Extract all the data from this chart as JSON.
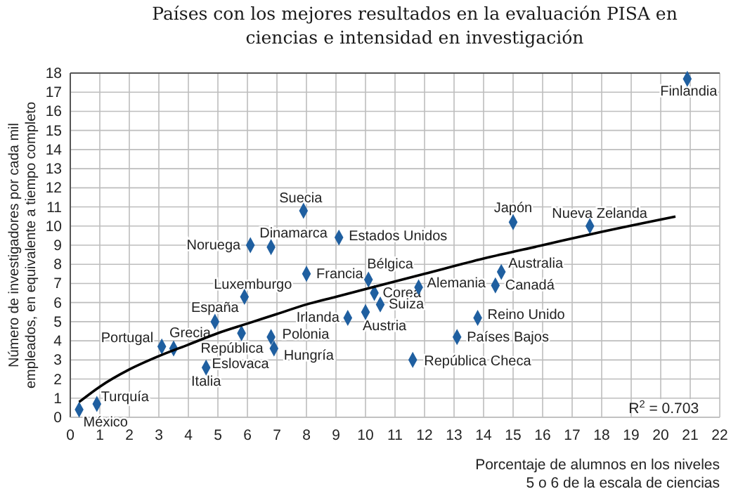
{
  "chart_data": {
    "type": "scatter",
    "title": "Países con los mejores resultados en la evaluación PISA en ciencias e intensidad en investigación",
    "xlabel": "Porcentaje de alumnos en los niveles 5 o 6 de la escala de ciencias",
    "ylabel": "Número de investigadores por cada mil empleados, en equivalente a tiempo completo",
    "xlim": [
      0,
      22
    ],
    "xticks": [
      0,
      1,
      2,
      3,
      4,
      5,
      6,
      7,
      8,
      9,
      10,
      11,
      12,
      13,
      14,
      15,
      16,
      17,
      18,
      19,
      20,
      21,
      22
    ],
    "ylim": [
      0,
      18
    ],
    "yticks": [
      0,
      1,
      2,
      3,
      4,
      5,
      6,
      7,
      8,
      9,
      10,
      11,
      12,
      13,
      14,
      15,
      16,
      17,
      18
    ],
    "grid": true,
    "marker": "diamond",
    "series": [
      {
        "color": "#1f5fa0",
        "x": [
          0.3,
          0.9,
          3.1,
          3.5,
          4.6,
          4.9,
          5.8,
          5.9,
          6.1,
          6.8,
          6.8,
          6.9,
          7.9,
          8.0,
          9.1,
          9.4,
          10.0,
          10.1,
          10.3,
          10.5,
          11.8,
          11.6,
          13.1,
          13.8,
          14.4,
          14.6,
          15.0,
          17.6,
          20.9
        ],
        "values": [
          0.4,
          0.7,
          3.7,
          3.6,
          2.6,
          5.0,
          4.4,
          6.3,
          9.0,
          8.9,
          4.2,
          3.6,
          10.8,
          7.5,
          9.4,
          5.2,
          5.5,
          7.2,
          6.5,
          5.9,
          6.8,
          3.0,
          4.2,
          5.2,
          6.9,
          7.6,
          10.2,
          10.0,
          17.7
        ]
      },
      {
        "type": "line",
        "color": "#000000",
        "marker": "none",
        "line_style": "solid",
        "x": [
          0.3,
          1,
          2,
          3,
          4,
          5,
          6,
          7,
          8,
          9,
          10,
          12,
          14,
          16,
          18,
          20.5
        ],
        "values": [
          0.8,
          1.6,
          2.5,
          3.2,
          3.8,
          4.4,
          4.9,
          5.4,
          5.9,
          6.3,
          6.7,
          7.5,
          8.3,
          9.0,
          9.7,
          10.5
        ]
      }
    ],
    "annotations": [
      {
        "text": "México",
        "x": 0.3,
        "y": 0.4
      },
      {
        "text": "Turquía",
        "x": 0.9,
        "y": 0.7
      },
      {
        "text": "Portugal",
        "x": 3.1,
        "y": 3.7
      },
      {
        "text": "Grecia",
        "x": 3.5,
        "y": 3.6
      },
      {
        "text": "Italia",
        "x": 4.6,
        "y": 2.6
      },
      {
        "text": "España",
        "x": 4.9,
        "y": 5.0
      },
      {
        "text": "República Eslovaca",
        "x": 5.8,
        "y": 4.4
      },
      {
        "text": "Luxemburgo",
        "x": 5.9,
        "y": 6.3
      },
      {
        "text": "Noruega",
        "x": 6.1,
        "y": 9.0
      },
      {
        "text": "Dinamarca",
        "x": 6.8,
        "y": 8.9
      },
      {
        "text": "Polonia",
        "x": 6.8,
        "y": 4.2
      },
      {
        "text": "Hungría",
        "x": 6.9,
        "y": 3.6
      },
      {
        "text": "Suecia",
        "x": 7.9,
        "y": 10.8
      },
      {
        "text": "Francia",
        "x": 8.0,
        "y": 7.5
      },
      {
        "text": "Estados Unidos",
        "x": 9.1,
        "y": 9.4
      },
      {
        "text": "Irlanda",
        "x": 9.4,
        "y": 5.2
      },
      {
        "text": "Austria",
        "x": 10.0,
        "y": 5.5
      },
      {
        "text": "Bélgica",
        "x": 10.1,
        "y": 7.2
      },
      {
        "text": "Corea",
        "x": 10.3,
        "y": 6.5
      },
      {
        "text": "Suiza",
        "x": 10.5,
        "y": 5.9
      },
      {
        "text": "Alemania",
        "x": 11.8,
        "y": 6.8
      },
      {
        "text": "República Checa",
        "x": 11.6,
        "y": 3.0
      },
      {
        "text": "Países Bajos",
        "x": 13.1,
        "y": 4.2
      },
      {
        "text": "Reino Unido",
        "x": 13.8,
        "y": 5.2
      },
      {
        "text": "Canadá",
        "x": 14.4,
        "y": 6.9
      },
      {
        "text": "Australia",
        "x": 14.6,
        "y": 7.6
      },
      {
        "text": "Japón",
        "x": 15.0,
        "y": 10.2
      },
      {
        "text": "Nueva Zelanda",
        "x": 17.6,
        "y": 10.0
      },
      {
        "text": "Finlandia",
        "x": 20.9,
        "y": 17.7
      },
      "R$^{2}$ = 0.703"
    ]
  }
}
